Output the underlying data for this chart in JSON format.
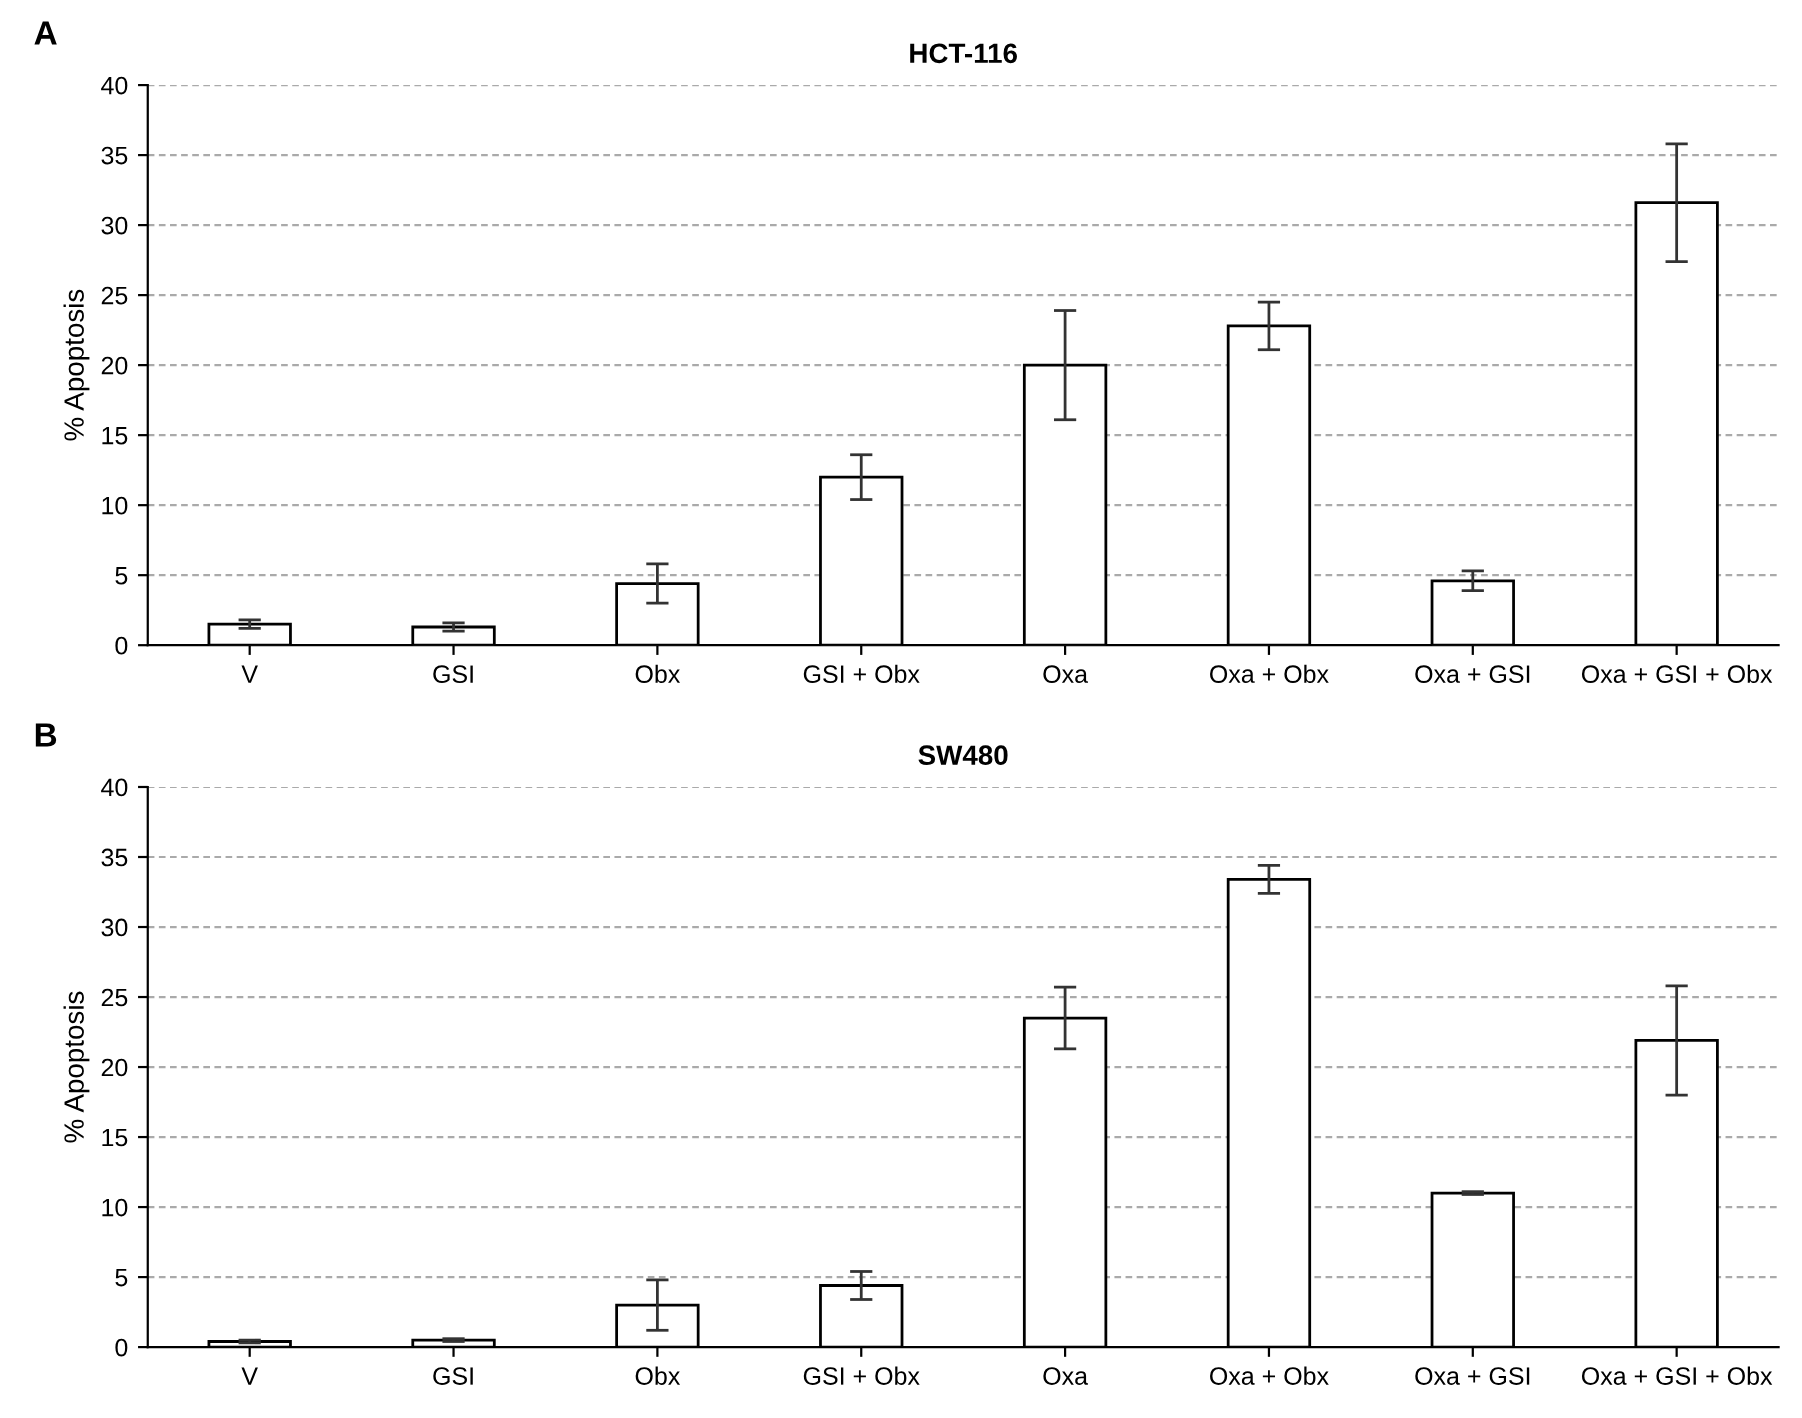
{
  "chart_data": [
    {
      "type": "bar",
      "title": "HCT-116",
      "ylabel": "% Apoptosis",
      "annotations": [
        "A"
      ],
      "categories": [
        "V",
        "GSI",
        "Obx",
        "GSI + Obx",
        "Oxa",
        "Oxa + Obx",
        "Oxa + GSI",
        "Oxa + GSI + Obx"
      ],
      "series": [
        {
          "color": "#ffffff",
          "values": [
            1.5,
            1.3,
            4.4,
            12.0,
            20.0,
            22.8,
            4.6,
            31.6
          ],
          "errors": [
            0.3,
            0.3,
            1.4,
            1.6,
            3.9,
            1.7,
            0.7,
            4.2
          ]
        }
      ],
      "ylim": [
        0,
        40
      ],
      "yticks": [
        0,
        5,
        10,
        15,
        20,
        25,
        30,
        35,
        40
      ],
      "grid": "y",
      "legend": false
    },
    {
      "type": "bar",
      "title": "SW480",
      "ylabel": "% Apoptosis",
      "annotations": [
        "B"
      ],
      "categories": [
        "V",
        "GSI",
        "Obx",
        "GSI + Obx",
        "Oxa",
        "Oxa + Obx",
        "Oxa + GSI",
        "Oxa + GSI + Obx"
      ],
      "series": [
        {
          "color": "#ffffff",
          "values": [
            0.4,
            0.5,
            3.0,
            4.4,
            23.5,
            33.4,
            11.0,
            21.9
          ],
          "errors": [
            0.1,
            0.1,
            1.8,
            1.0,
            2.2,
            1.0,
            0.1,
            3.9
          ]
        }
      ],
      "ylim": [
        0,
        40
      ],
      "yticks": [
        0,
        5,
        10,
        15,
        20,
        25,
        30,
        35,
        40
      ],
      "grid": "y",
      "legend": false
    }
  ]
}
